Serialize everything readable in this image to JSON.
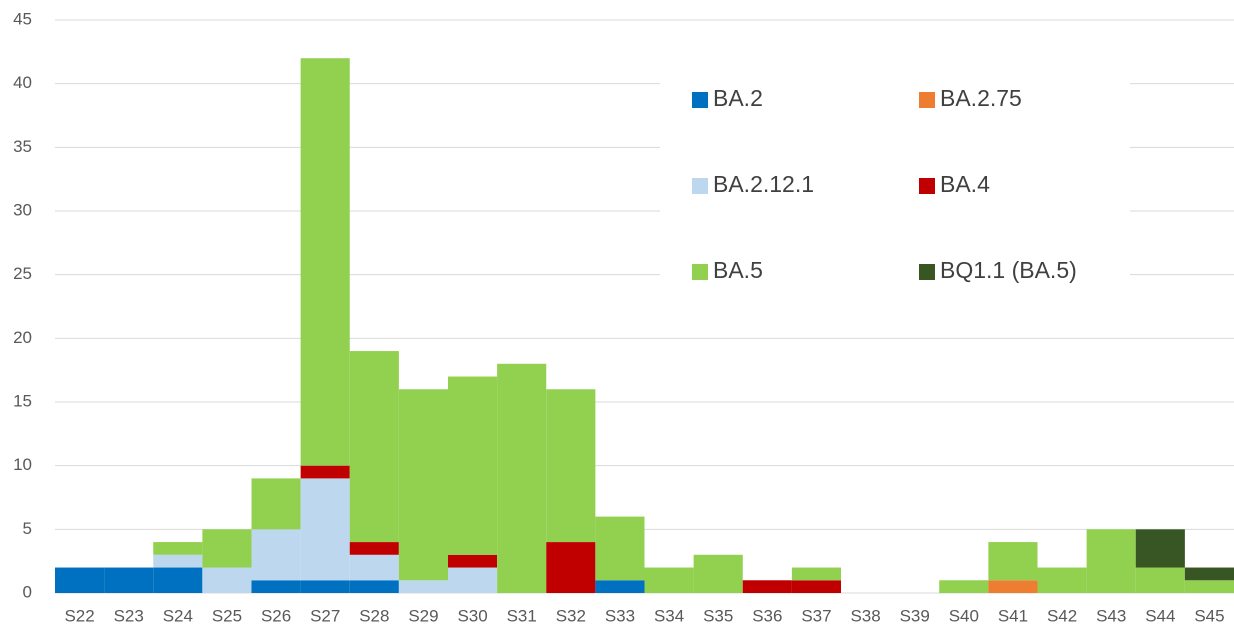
{
  "chart_data": {
    "type": "stacked_bar",
    "categories": [
      "S22",
      "S23",
      "S24",
      "S25",
      "S26",
      "S27",
      "S28",
      "S29",
      "S30",
      "S31",
      "S32",
      "S33",
      "S34",
      "S35",
      "S36",
      "S37",
      "S38",
      "S39",
      "S40",
      "S41",
      "S42",
      "S43",
      "S44",
      "S45"
    ],
    "series": [
      {
        "name": "BA.2",
        "color": "#0070c0",
        "values": [
          2,
          2,
          2,
          0,
          1,
          1,
          1,
          0,
          0,
          0,
          0,
          1,
          0,
          0,
          0,
          0,
          0,
          0,
          0,
          0,
          0,
          0,
          0,
          0
        ]
      },
      {
        "name": "BA.2.75",
        "color": "#ed7d31",
        "values": [
          0,
          0,
          0,
          0,
          0,
          0,
          0,
          0,
          0,
          0,
          0,
          0,
          0,
          0,
          0,
          0,
          0,
          0,
          0,
          1,
          0,
          0,
          0,
          0
        ]
      },
      {
        "name": "BA.2.12.1",
        "color": "#bdd7ee",
        "values": [
          0,
          0,
          1,
          2,
          4,
          8,
          2,
          1,
          2,
          0,
          0,
          0,
          0,
          0,
          0,
          0,
          0,
          0,
          0,
          0,
          0,
          0,
          0,
          0
        ]
      },
      {
        "name": "BA.4",
        "color": "#c00000",
        "values": [
          0,
          0,
          0,
          0,
          0,
          1,
          1,
          0,
          1,
          0,
          4,
          0,
          0,
          0,
          1,
          1,
          0,
          0,
          0,
          0,
          0,
          0,
          0,
          0
        ]
      },
      {
        "name": "BA.5",
        "color": "#92d050",
        "values": [
          0,
          0,
          1,
          3,
          4,
          32,
          15,
          15,
          14,
          18,
          12,
          5,
          2,
          3,
          0,
          1,
          0,
          0,
          1,
          3,
          2,
          5,
          2,
          1
        ]
      },
      {
        "name": "BQ1.1 (BA.5)",
        "color": "#375623",
        "values": [
          0,
          0,
          0,
          0,
          0,
          0,
          0,
          0,
          0,
          0,
          0,
          0,
          0,
          0,
          0,
          0,
          0,
          0,
          0,
          0,
          0,
          0,
          3,
          1
        ]
      }
    ],
    "ylim": [
      0,
      45
    ],
    "yticks": [
      0,
      5,
      10,
      15,
      20,
      25,
      30,
      35,
      40,
      45
    ],
    "grid": true
  }
}
